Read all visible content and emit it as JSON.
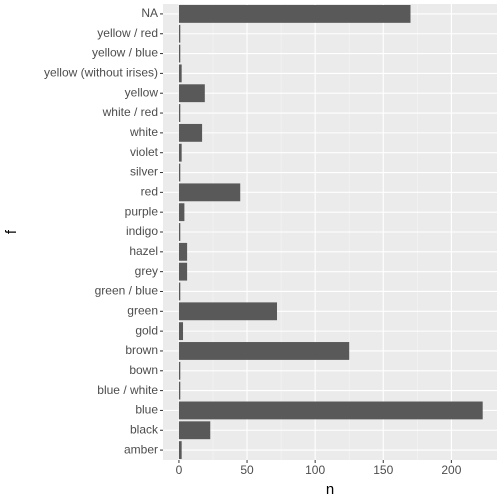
{
  "chart_data": {
    "type": "hbar",
    "xlabel": "n",
    "ylabel": "f",
    "categories": [
      "amber",
      "black",
      "blue",
      "blue / white",
      "bown",
      "brown",
      "gold",
      "green",
      "green / blue",
      "grey",
      "hazel",
      "indigo",
      "purple",
      "red",
      "silver",
      "violet",
      "white",
      "white / red",
      "yellow",
      "yellow (without irises)",
      "yellow / blue",
      "yellow / red",
      "NA"
    ],
    "values": [
      2,
      23,
      223,
      1,
      1,
      125,
      3,
      72,
      1,
      6,
      6,
      1,
      4,
      45,
      1,
      2,
      17,
      1,
      19,
      2,
      1,
      1,
      170
    ],
    "color": "#595959",
    "xlim": [
      -11.7,
      233.5
    ],
    "xticks": [
      0,
      50,
      100,
      150,
      200
    ],
    "grid": true
  }
}
